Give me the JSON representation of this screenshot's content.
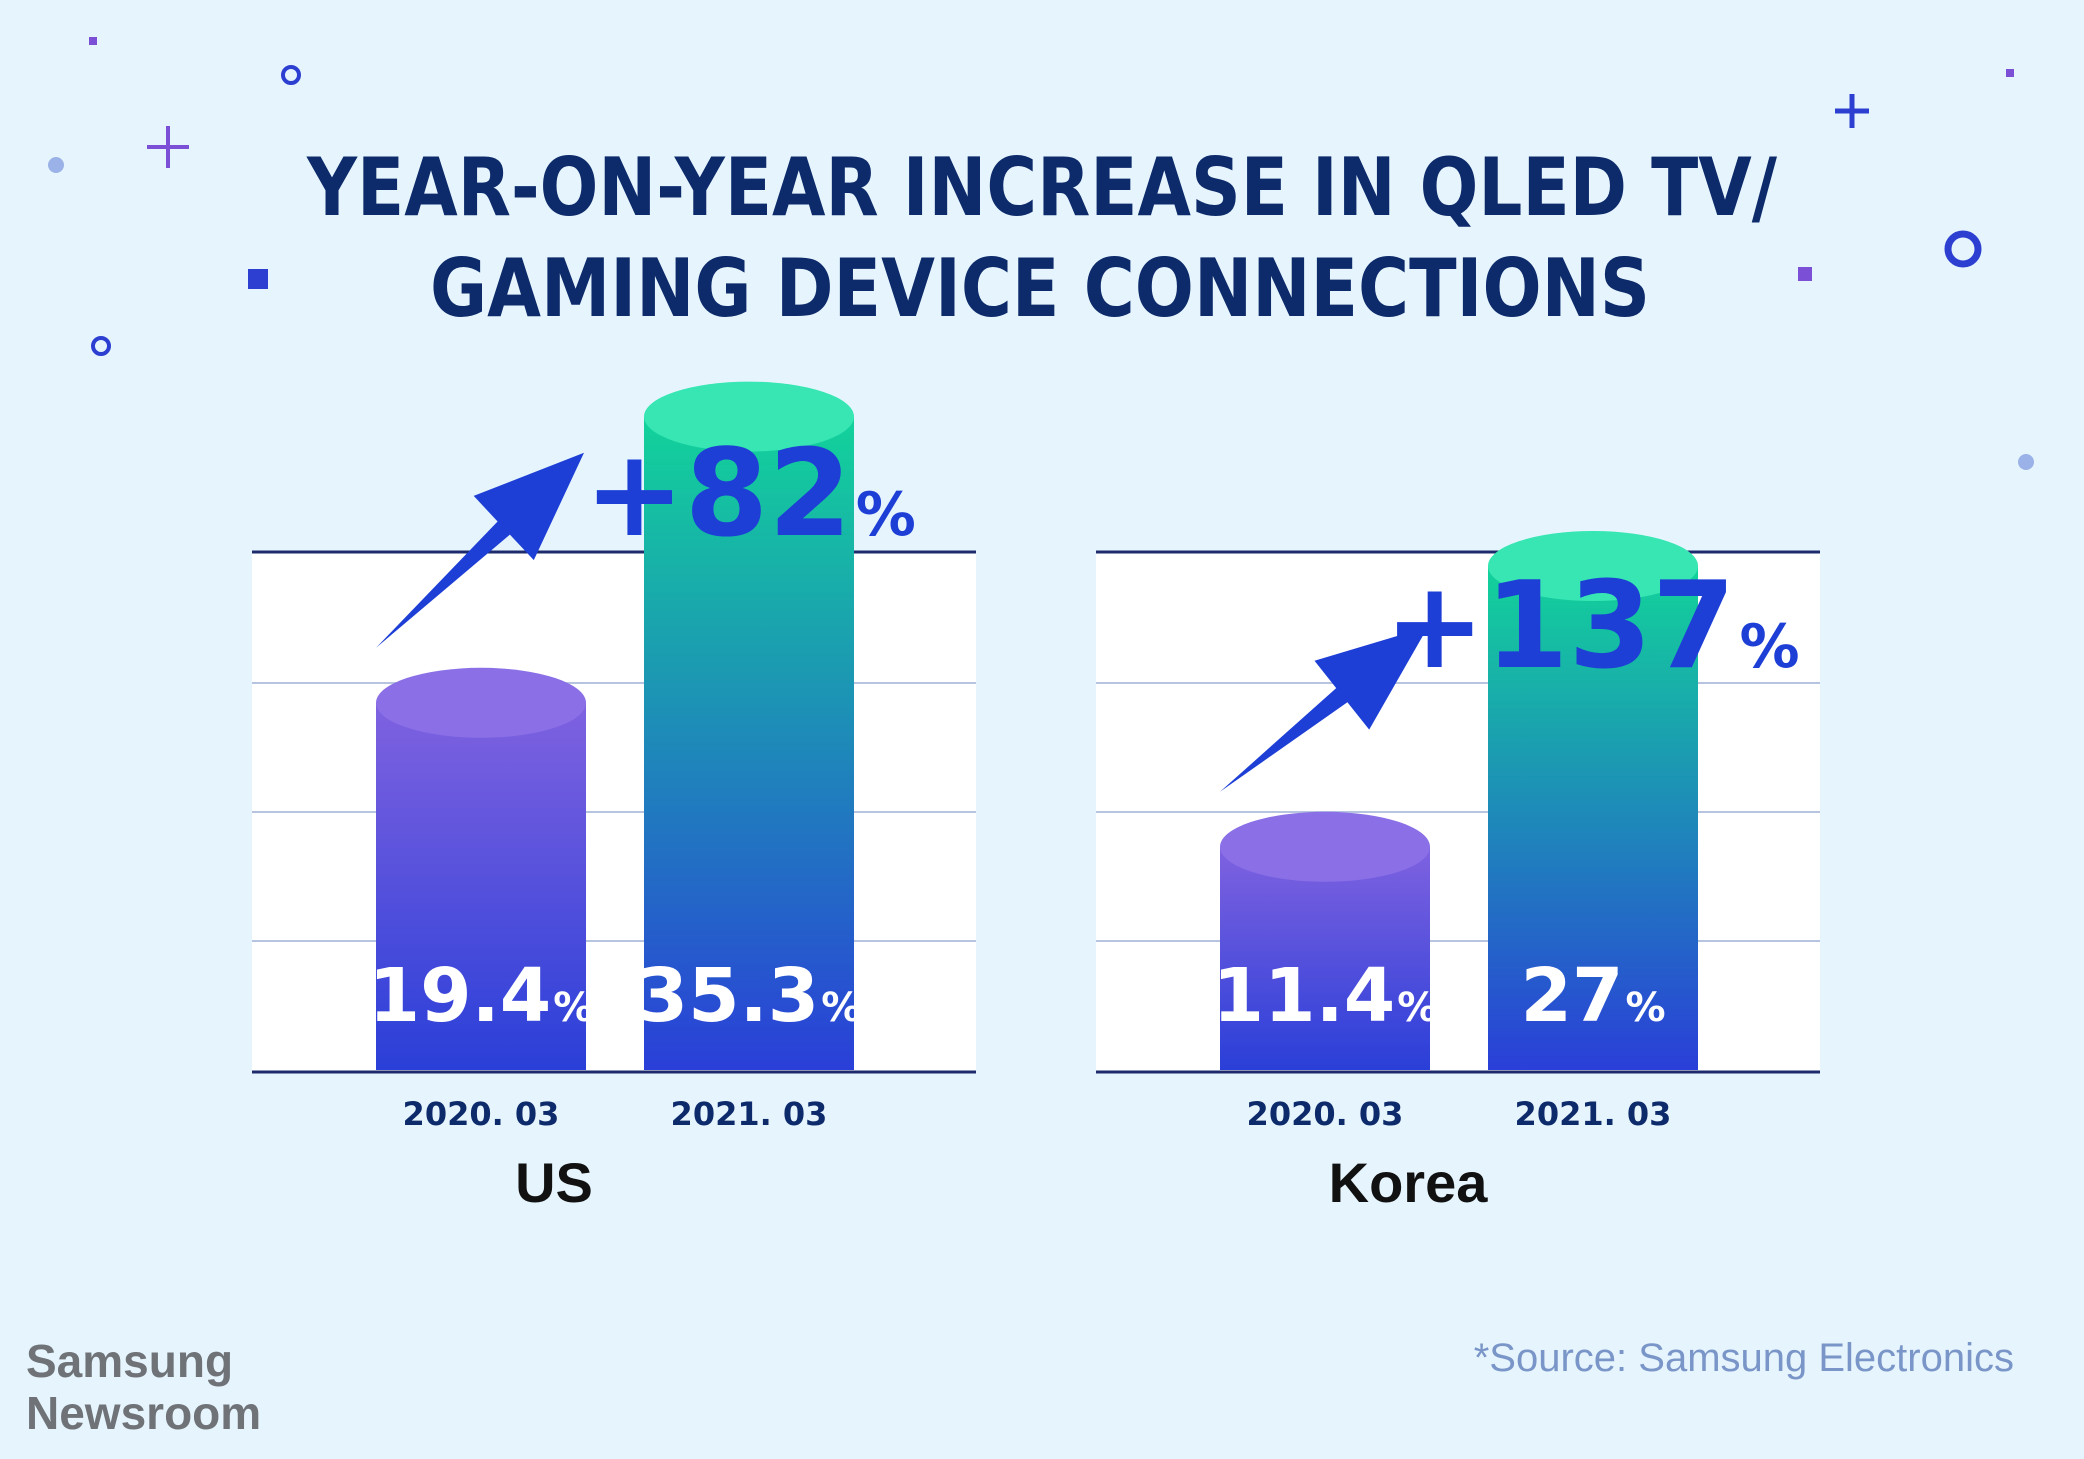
{
  "title_lines": [
    "YEAR-ON-YEAR INCREASE IN QLED TV/",
    "GAMING DEVICE CONNECTIONS"
  ],
  "colors": {
    "title": "#0d2a6b",
    "accent_blue": "#1d3fd6",
    "bar_2020_top": "#7f62e0",
    "bar_2020_bottom": "#2a3fd8",
    "bar_2021_top": "#12d39a",
    "bar_2021_bottom": "#2a3fd8",
    "axis": "#1d2a6b",
    "gridline": "#b7c4e0"
  },
  "chart_data": [
    {
      "type": "bar",
      "region": "US",
      "categories": [
        "2020. 03",
        "2021. 03"
      ],
      "values": [
        19.4,
        35.3
      ],
      "value_labels": [
        "19.4",
        "35.3"
      ],
      "unit": "%",
      "growth_label": "+82",
      "ylim": [
        0,
        40
      ],
      "grid": true
    },
    {
      "type": "bar",
      "region": "Korea",
      "categories": [
        "2020. 03",
        "2021. 03"
      ],
      "values": [
        11.4,
        27
      ],
      "value_labels": [
        "11.4",
        "27"
      ],
      "unit": "%",
      "growth_label": "+137",
      "ylim": [
        0,
        40
      ],
      "grid": true
    }
  ],
  "brand": {
    "line1": "Samsung",
    "line2": "Newsroom"
  },
  "source": "*Source: Samsung Electronics"
}
